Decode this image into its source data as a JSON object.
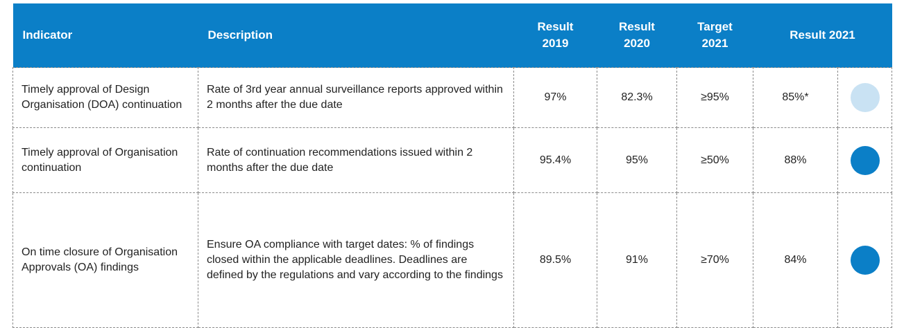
{
  "table": {
    "header": [
      "Indicator",
      "Description",
      "Result 2019",
      "Result 2020",
      "Target 2021",
      "Result 2021"
    ],
    "rows": [
      [
        "Timely approval of Design Organisation (DOA) continuation",
        "Rate of 3rd year annual surveillance reports approved within 2 months after the due date",
        "97%",
        "82.3%",
        "≥95%",
        "85%*"
      ],
      [
        "Timely approval of Organisation continuation",
        "Rate of continuation recommendations issued within 2 months after the due date",
        "95.4%",
        "95%",
        "≥50%",
        "88%"
      ],
      [
        "On time closure of Organisation Approvals (OA) findings",
        "Ensure OA compliance with target dates: % of findings closed within the applicable deadlines. Deadlines are defined by the regulations and vary according to the findings",
        "89.5%",
        "91%",
        "≥70%",
        "84%"
      ]
    ]
  }
}
